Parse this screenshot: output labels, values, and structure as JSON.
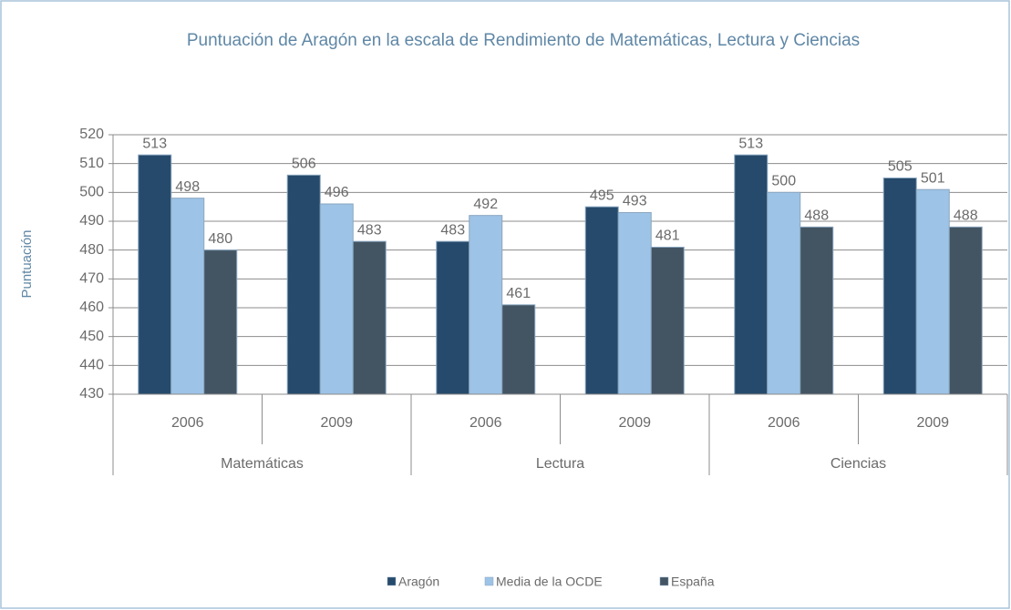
{
  "chart_data": {
    "type": "bar",
    "title": "Puntuación de Aragón en la escala de Rendimiento de Matemáticas, Lectura y Ciencias",
    "y_label": "Puntuación",
    "categories": [
      "2006",
      "2009",
      "2006",
      "2009",
      "2006",
      "2009"
    ],
    "groups": [
      "Matemáticas",
      "Lectura",
      "Ciencias"
    ],
    "series": [
      {
        "name": "Aragón",
        "color": "#264a6b",
        "values": [
          513,
          506,
          483,
          495,
          513,
          505
        ]
      },
      {
        "name": "Media de la OCDE",
        "color": "#9dc3e6",
        "values": [
          498,
          496,
          492,
          493,
          500,
          501
        ]
      },
      {
        "name": "España",
        "color": "#435563",
        "values": [
          480,
          483,
          461,
          481,
          488,
          488
        ]
      }
    ],
    "ylim": [
      430,
      520
    ],
    "yticks": [
      430,
      440,
      450,
      460,
      470,
      480,
      490,
      500,
      510,
      520
    ],
    "grid": true,
    "legend": "bottom"
  }
}
